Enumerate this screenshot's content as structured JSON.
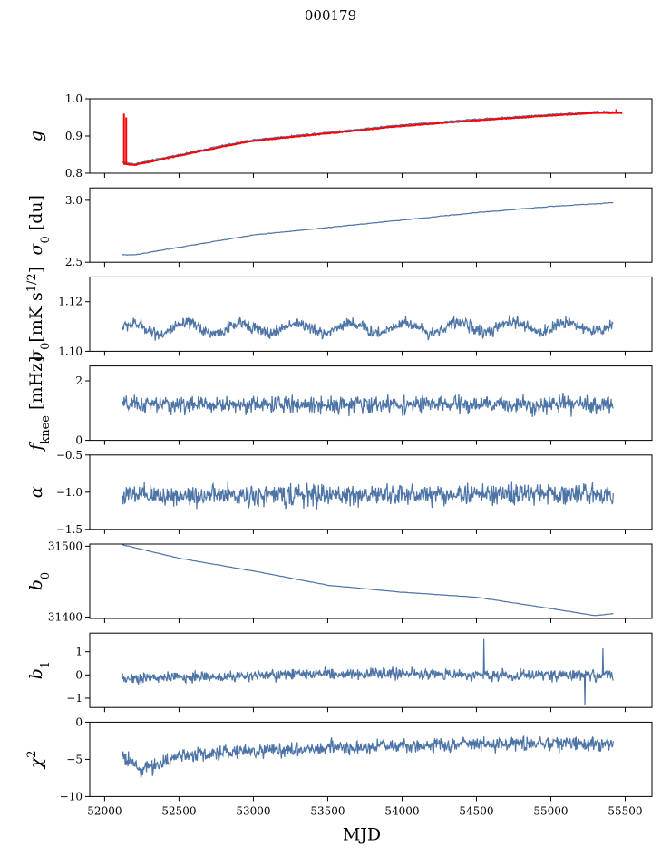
{
  "title": "000179",
  "colors": {
    "series": "#4c74a6",
    "overlay": "#ff0000",
    "axis": "#000000"
  },
  "chart_data": {
    "type": "line",
    "xlabel": "MJD",
    "xlim": [
      51900,
      55680
    ],
    "xticks": [
      52000,
      52500,
      53000,
      53500,
      54000,
      54500,
      55000,
      55500
    ],
    "xtick_labels": [
      "52000",
      "52500",
      "53000",
      "53500",
      "54000",
      "54500",
      "55000",
      "55500"
    ],
    "x_start": 52120,
    "x_end": 55420,
    "panels": [
      {
        "name": "g",
        "ylabel_base": "g",
        "ylim": [
          0.8,
          1.0
        ],
        "yticks": [
          0.8,
          0.9,
          1.0
        ],
        "ytick_labels": [
          "0.8",
          "0.9",
          "1.0"
        ],
        "trend": [
          [
            52120,
            0.83
          ],
          [
            52200,
            0.825
          ],
          [
            52500,
            0.85
          ],
          [
            52800,
            0.875
          ],
          [
            53000,
            0.89
          ],
          [
            53500,
            0.91
          ],
          [
            54000,
            0.93
          ],
          [
            54500,
            0.945
          ],
          [
            55000,
            0.958
          ],
          [
            55300,
            0.965
          ],
          [
            55500,
            0.965
          ]
        ],
        "noise": 0.002,
        "overlay_trend": [
          [
            52120,
            0.826
          ],
          [
            52200,
            0.822
          ],
          [
            52500,
            0.847
          ],
          [
            52800,
            0.872
          ],
          [
            53000,
            0.887
          ],
          [
            53500,
            0.907
          ],
          [
            54000,
            0.927
          ],
          [
            54500,
            0.942
          ],
          [
            55000,
            0.955
          ],
          [
            55300,
            0.962
          ],
          [
            55500,
            0.962
          ]
        ],
        "overlay_spikes": [
          [
            52130,
            0.96
          ],
          [
            52145,
            0.95
          ],
          [
            55440,
            0.972
          ]
        ]
      },
      {
        "name": "sigma0-du",
        "ylabel_base": "σ",
        "ylabel_sub": "0",
        "ylabel_unit": " [du]",
        "ylim": [
          2.5,
          3.1
        ],
        "yticks": [
          2.5,
          3.0
        ],
        "ytick_labels": [
          "2.5",
          "3.0"
        ],
        "trend": [
          [
            52200,
            2.56
          ],
          [
            52500,
            2.62
          ],
          [
            53000,
            2.72
          ],
          [
            53500,
            2.78
          ],
          [
            54000,
            2.84
          ],
          [
            54500,
            2.9
          ],
          [
            55000,
            2.95
          ],
          [
            55420,
            2.98
          ]
        ],
        "noise": 0.003
      },
      {
        "name": "sigma0-mk",
        "ylabel_base": "σ",
        "ylabel_sub": "0",
        "ylabel_unit": "[mK s",
        "ylabel_sup": "1/2",
        "ylabel_end": "]",
        "ylim": [
          1.1,
          1.13
        ],
        "yticks": [
          1.1,
          1.12
        ],
        "ytick_labels": [
          "1.10",
          "1.12"
        ],
        "trend": [
          [
            52120,
            1.109
          ],
          [
            55420,
            1.11
          ]
        ],
        "wave_amp": 0.002,
        "wave_period": 365,
        "noise": 0.0015
      },
      {
        "name": "fknee",
        "ylabel_base": "f",
        "ylabel_sub": "knee",
        "ylabel_unit": " [mHz]",
        "ylim": [
          0,
          2.5
        ],
        "yticks": [
          0,
          2
        ],
        "ytick_labels": [
          "0",
          "2"
        ],
        "trend": [
          [
            52120,
            1.2
          ],
          [
            55420,
            1.2
          ]
        ],
        "noise": 0.18
      },
      {
        "name": "alpha",
        "ylabel_base": "α",
        "ylim": [
          -1.5,
          -0.5
        ],
        "yticks": [
          -1.5,
          -1.0,
          -0.5
        ],
        "ytick_labels": [
          "−1.5",
          "−1.0",
          "−0.5"
        ],
        "trend": [
          [
            52120,
            -1.05
          ],
          [
            55420,
            -1.02
          ]
        ],
        "noise": 0.09
      },
      {
        "name": "b0",
        "ylabel_base": "b",
        "ylabel_sub": "0",
        "ylim": [
          31398,
          31503
        ],
        "yticks": [
          31400,
          31500
        ],
        "ytick_labels": [
          "31400",
          "31500"
        ],
        "trend": [
          [
            52120,
            31502
          ],
          [
            52500,
            31483
          ],
          [
            53000,
            31465
          ],
          [
            53500,
            31445
          ],
          [
            54000,
            31435
          ],
          [
            54500,
            31428
          ],
          [
            55000,
            31412
          ],
          [
            55300,
            31402
          ],
          [
            55420,
            31405
          ]
        ],
        "noise": 0.3
      },
      {
        "name": "b1",
        "ylabel_base": "b",
        "ylabel_sub": "1",
        "ylim": [
          -1.4,
          1.8
        ],
        "yticks": [
          -1,
          0,
          1
        ],
        "ytick_labels": [
          "−1",
          "0",
          "1"
        ],
        "trend": [
          [
            52120,
            -0.15
          ],
          [
            52500,
            -0.1
          ],
          [
            53000,
            -0.05
          ],
          [
            53500,
            0.05
          ],
          [
            54000,
            0.05
          ],
          [
            54500,
            0.0
          ],
          [
            55000,
            0.0
          ],
          [
            55420,
            0.0
          ]
        ],
        "noise": 0.15,
        "spikes": [
          [
            54550,
            1.55
          ],
          [
            55230,
            -1.3
          ],
          [
            55350,
            1.15
          ]
        ]
      },
      {
        "name": "chi2",
        "ylabel_base": "χ",
        "ylabel_sup": "2",
        "ylim": [
          -10,
          0
        ],
        "yticks": [
          -10,
          -5,
          0
        ],
        "ytick_labels": [
          "−10",
          "−5",
          "0"
        ],
        "trend": [
          [
            52120,
            -4.5
          ],
          [
            52250,
            -6.5
          ],
          [
            52500,
            -4.5
          ],
          [
            53000,
            -3.8
          ],
          [
            53500,
            -3.5
          ],
          [
            54000,
            -3.2
          ],
          [
            54500,
            -3.0
          ],
          [
            55000,
            -2.8
          ],
          [
            55420,
            -3.0
          ]
        ],
        "noise": 0.6
      }
    ]
  }
}
